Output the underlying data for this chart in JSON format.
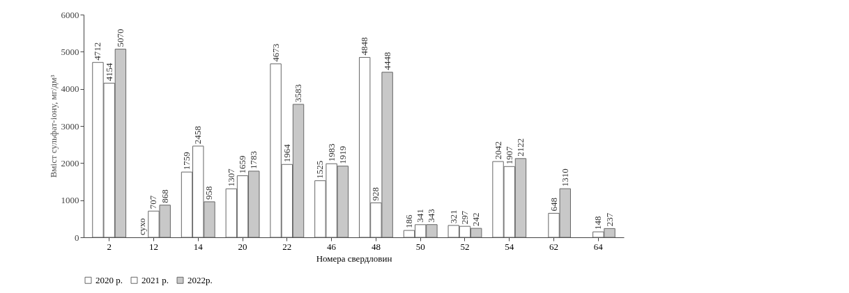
{
  "chart_data": {
    "type": "bar",
    "xlabel": "Номера свердловин",
    "ylabel": "Вміст сульфат-іону, мг/дм³",
    "categories": [
      "2",
      "12",
      "14",
      "20",
      "22",
      "46",
      "48",
      "50",
      "52",
      "54",
      "62",
      "64"
    ],
    "series": [
      {
        "name": "2020 р.",
        "color": "#ffffff",
        "values": [
          4712,
          null,
          1759,
          1307,
          4673,
          1525,
          4848,
          186,
          321,
          2042,
          null,
          null
        ],
        "value_labels": [
          "4712",
          "сухо",
          "1759",
          "1307",
          "4673",
          "1525",
          "4848",
          "186",
          "321",
          "2042",
          null,
          null
        ]
      },
      {
        "name": "2021 р.",
        "color": "#ffffff",
        "values": [
          4154,
          707,
          2458,
          1659,
          1964,
          1983,
          928,
          341,
          297,
          1907,
          648,
          148
        ],
        "value_labels": [
          "4154",
          "707",
          "2458",
          "1659",
          "1964",
          "1983",
          "928",
          "341",
          "297",
          "1907",
          "648",
          "148"
        ]
      },
      {
        "name": "2022р.",
        "color": "#c8c8c8",
        "values": [
          5070,
          868,
          958,
          1783,
          3583,
          1919,
          4448,
          343,
          242,
          2122,
          1310,
          237
        ],
        "value_labels": [
          "5070",
          "868",
          "958",
          "1783",
          "3583",
          "1919",
          "4448",
          "343",
          "242",
          "2122",
          "1310",
          "237"
        ]
      }
    ],
    "ylim": [
      0,
      6000
    ],
    "yticks": [
      0,
      1000,
      2000,
      3000,
      4000,
      5000,
      6000
    ],
    "grid": false,
    "legend": "bottom left"
  }
}
